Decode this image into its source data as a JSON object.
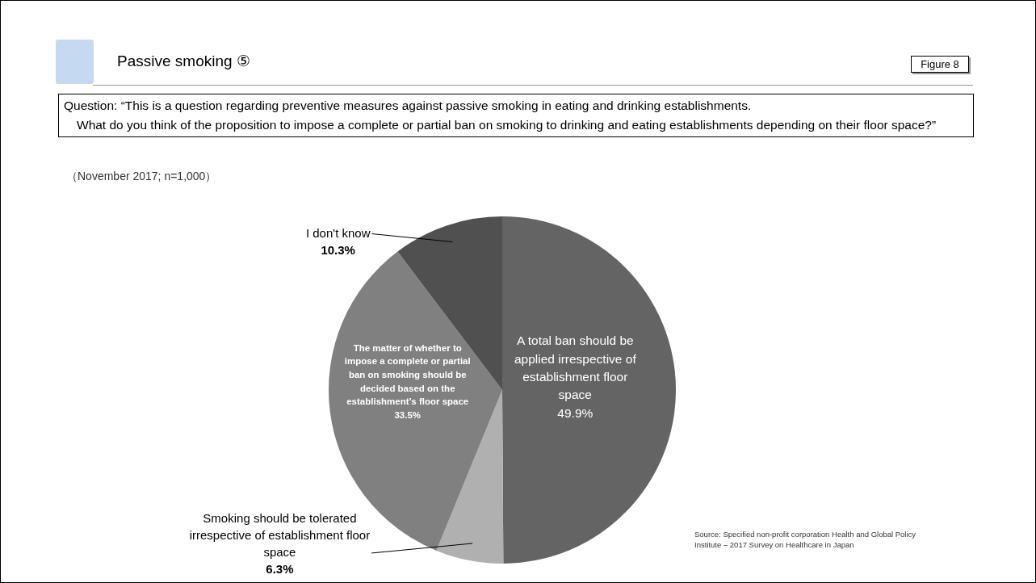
{
  "chart_data": {
    "type": "pie",
    "title": "Passive smoking ⑤",
    "subtitle": "Question: “This is a question regarding preventive measures against passive smoking in eating and drinking establishments.\n　What do you think of the proposition to impose a complete or partial ban on smoking to drinking and eating establishments depending on their floor space?”",
    "categories": [
      "A total ban should be applied irrespective of establishment floor space",
      "Smoking should be tolerated irrespective of establishment floor space",
      "The matter of whether to impose a complete or partial ban on smoking should be decided based on the establishment’s floor space",
      "I don't know"
    ],
    "values": [
      49.9,
      6.3,
      33.5,
      10.3
    ],
    "colors": [
      "#646464",
      "#b0b0b0",
      "#808080",
      "#505050"
    ],
    "value_labels": [
      "49.9%",
      "6.3%",
      "33.5%",
      "10.3%"
    ],
    "annotations": [
      "Figure 8",
      "（November 2017; n=1,000）",
      "Source: Specified non-profit corporation Health and Global Policy Institute – 2017 Survey on Healthcare in Japan"
    ]
  }
}
